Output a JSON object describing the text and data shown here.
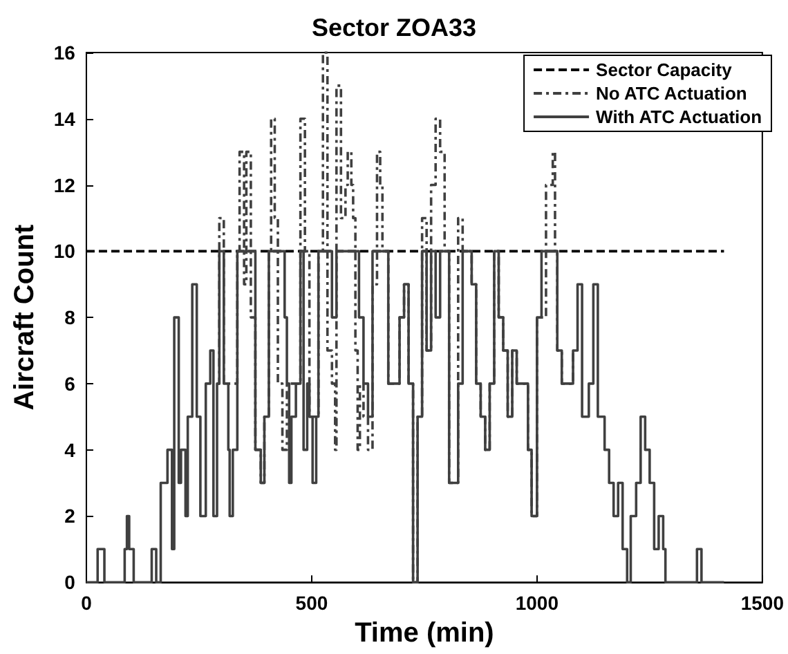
{
  "chart_data": {
    "type": "step",
    "title": "Sector ZOA33",
    "xlabel": "Time (min)",
    "ylabel": "Aircraft Count",
    "xlim": [
      0,
      1500
    ],
    "xticks": [
      0,
      500,
      1000,
      1500
    ],
    "ylim": [
      0,
      16
    ],
    "yticks": [
      0,
      2,
      4,
      6,
      8,
      10,
      12,
      14,
      16
    ],
    "grid": false,
    "legend": "top right",
    "series": [
      {
        "name": "Sector Capacity",
        "color": "#000000",
        "line_style": "dashed",
        "x": [
          0,
          1415
        ],
        "values": [
          10,
          10
        ]
      },
      {
        "name": "No ATC Actuation",
        "color": "#404040",
        "line_style": "dashdot",
        "x": [
          290,
          295,
          305,
          335,
          340,
          350,
          355,
          365,
          375,
          387,
          395,
          405,
          410,
          418,
          425,
          435,
          445,
          465,
          475,
          485,
          495,
          515,
          525,
          535,
          545,
          552,
          555,
          565,
          575,
          580,
          588,
          592,
          597,
          602,
          607,
          615,
          625,
          635,
          645,
          652,
          657,
          670,
          685,
          695,
          705,
          715,
          725,
          735,
          745,
          755,
          765,
          775,
          785,
          795,
          805,
          815,
          825,
          835,
          855,
          865,
          875,
          885,
          895,
          905,
          915,
          925,
          935,
          945,
          955,
          980,
          988,
          1000,
          1020,
          1035,
          1040,
          1045,
          1055,
          1080
        ],
        "values": [
          6,
          11,
          6,
          10,
          13,
          9,
          13,
          8,
          4,
          3,
          5,
          10,
          14,
          11,
          6,
          4,
          6,
          6,
          14,
          10,
          5,
          10,
          16,
          7,
          6,
          4,
          15,
          11,
          12,
          13,
          12,
          11,
          7,
          4,
          6,
          5,
          4,
          9,
          13,
          12,
          10,
          6,
          6,
          8,
          9,
          6,
          0,
          5,
          11,
          7,
          12,
          14,
          13,
          10,
          3,
          3,
          11,
          10,
          9,
          6,
          5,
          4,
          6,
          10,
          8,
          7,
          5,
          7,
          6,
          4,
          2,
          8,
          12,
          13,
          10,
          7,
          6,
          7
        ]
      },
      {
        "name": "With ATC Actuation",
        "color": "#404040",
        "line_style": "solid",
        "x": [
          0,
          25,
          40,
          85,
          90,
          95,
          105,
          145,
          155,
          165,
          180,
          190,
          195,
          205,
          210,
          220,
          225,
          235,
          245,
          253,
          265,
          275,
          282,
          290,
          295,
          305,
          315,
          318,
          325,
          335,
          375,
          387,
          395,
          405,
          440,
          445,
          450,
          455,
          465,
          475,
          482,
          490,
          495,
          502,
          510,
          515,
          545,
          555,
          605,
          615,
          625,
          635,
          670,
          685,
          695,
          705,
          715,
          725,
          735,
          745,
          755,
          765,
          775,
          785,
          805,
          815,
          825,
          835,
          855,
          865,
          875,
          885,
          895,
          905,
          915,
          925,
          935,
          945,
          955,
          980,
          988,
          1000,
          1010,
          1045,
          1055,
          1080,
          1090,
          1100,
          1115,
          1125,
          1135,
          1150,
          1160,
          1170,
          1180,
          1190,
          1200,
          1208,
          1220,
          1230,
          1240,
          1250,
          1260,
          1270,
          1280,
          1285,
          1355,
          1365,
          1415
        ],
        "values": [
          0,
          1,
          0,
          1,
          2,
          1,
          0,
          1,
          0,
          3,
          4,
          1,
          8,
          3,
          4,
          2,
          5,
          9,
          5,
          2,
          6,
          7,
          2,
          6,
          10,
          6,
          4,
          2,
          4,
          10,
          4,
          3,
          5,
          10,
          8,
          6,
          3,
          5,
          6,
          10,
          4,
          6,
          5,
          3,
          5,
          10,
          8,
          10,
          8,
          6,
          5,
          10,
          6,
          6,
          8,
          9,
          6,
          0,
          5,
          10,
          7,
          10,
          8,
          10,
          3,
          3,
          6,
          10,
          9,
          6,
          5,
          4,
          6,
          10,
          8,
          7,
          5,
          7,
          6,
          4,
          2,
          8,
          10,
          7,
          6,
          7,
          9,
          5,
          6,
          9,
          5,
          4,
          3,
          2,
          3,
          1,
          0,
          2,
          3,
          5,
          4,
          3,
          1,
          2,
          1,
          0,
          1,
          0,
          0
        ]
      }
    ]
  }
}
